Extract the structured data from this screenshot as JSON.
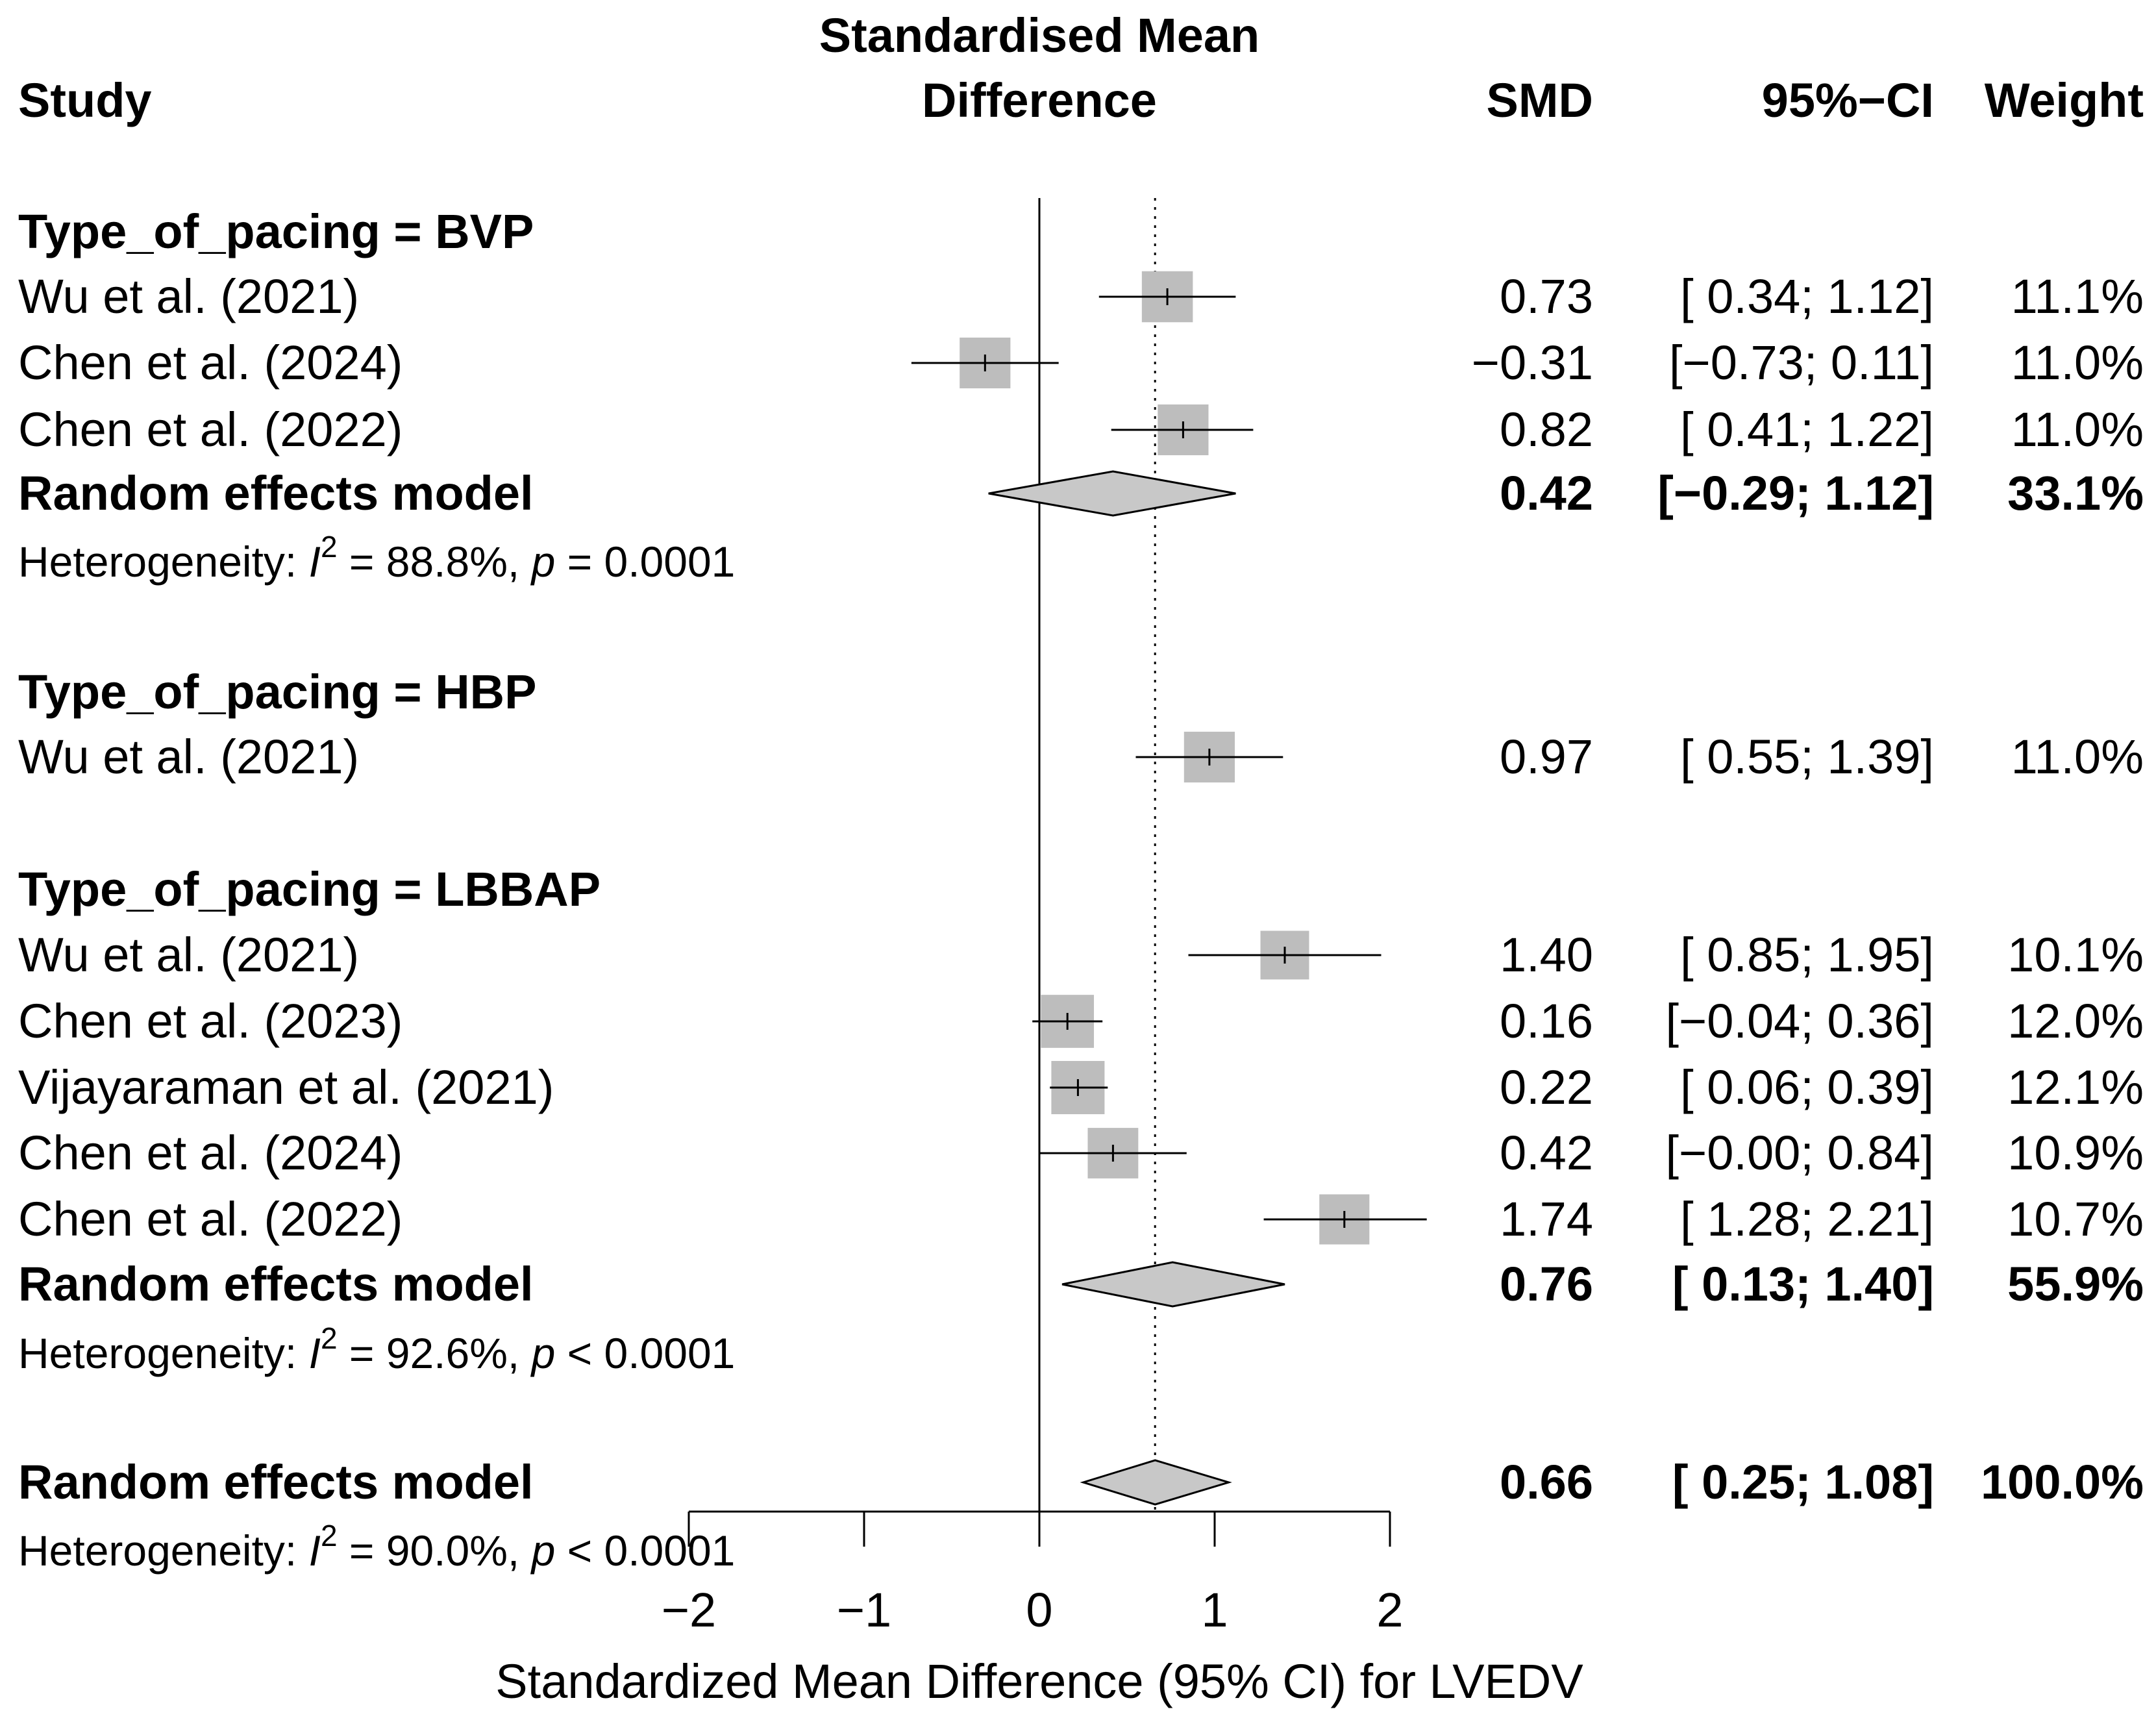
{
  "headers": {
    "study": "Study",
    "smd_line1": "Standardised Mean",
    "smd_line2": "Difference",
    "smd": "SMD",
    "ci": "95%−CI",
    "weight": "Weight"
  },
  "colors": {
    "square": "#bdbdbd",
    "diamond": "#c8c8c8",
    "line": "#000000"
  },
  "chart_data": {
    "type": "forest",
    "xlabel": "Standardized Mean Difference (95% CI) for LVEDV",
    "xlim": [
      -2,
      2
    ],
    "xticks": [
      -2,
      -1,
      0,
      1,
      2
    ],
    "xtick_labels": [
      "−2",
      "−1",
      "0",
      "1",
      "2"
    ],
    "null_line": 0,
    "overall_effect_line": 0.66,
    "groups": [
      {
        "label": "Type_of_pacing = BVP",
        "studies": [
          {
            "study": "Wu et al. (2021)",
            "smd": 0.73,
            "lower": 0.34,
            "upper": 1.12,
            "smd_text": "0.73",
            "ci_text": "[ 0.34; 1.12]",
            "weight_text": "11.1%",
            "weight": 11.1
          },
          {
            "study": "Chen et al. (2024)",
            "smd": -0.31,
            "lower": -0.73,
            "upper": 0.11,
            "smd_text": "−0.31",
            "ci_text": "[−0.73; 0.11]",
            "weight_text": "11.0%",
            "weight": 11.0
          },
          {
            "study": "Chen et al. (2022)",
            "smd": 0.82,
            "lower": 0.41,
            "upper": 1.22,
            "smd_text": "0.82",
            "ci_text": "[ 0.41; 1.22]",
            "weight_text": "11.0%",
            "weight": 11.0
          }
        ],
        "pooled": {
          "label": "Random effects model",
          "smd": 0.42,
          "lower": -0.29,
          "upper": 1.12,
          "smd_text": "0.42",
          "ci_text": "[−0.29; 1.12]",
          "weight_text": "33.1%"
        },
        "heterogeneity": {
          "prefix": "Heterogeneity: ",
          "i2_symbol": "I",
          "i2_sup": "2",
          "i2_text": " = 88.8%, ",
          "p_symbol": "p",
          "p_text": " = 0.0001"
        }
      },
      {
        "label": "Type_of_pacing = HBP",
        "studies": [
          {
            "study": "Wu et al. (2021)",
            "smd": 0.97,
            "lower": 0.55,
            "upper": 1.39,
            "smd_text": "0.97",
            "ci_text": "[ 0.55; 1.39]",
            "weight_text": "11.0%",
            "weight": 11.0
          }
        ]
      },
      {
        "label": "Type_of_pacing = LBBAP",
        "studies": [
          {
            "study": "Wu et al. (2021)",
            "smd": 1.4,
            "lower": 0.85,
            "upper": 1.95,
            "smd_text": "1.40",
            "ci_text": "[ 0.85; 1.95]",
            "weight_text": "10.1%",
            "weight": 10.1
          },
          {
            "study": "Chen et al. (2023)",
            "smd": 0.16,
            "lower": -0.04,
            "upper": 0.36,
            "smd_text": "0.16",
            "ci_text": "[−0.04; 0.36]",
            "weight_text": "12.0%",
            "weight": 12.0
          },
          {
            "study": "Vijayaraman et al. (2021)",
            "smd": 0.22,
            "lower": 0.06,
            "upper": 0.39,
            "smd_text": "0.22",
            "ci_text": "[ 0.06; 0.39]",
            "weight_text": "12.1%",
            "weight": 12.1
          },
          {
            "study": "Chen et al. (2024)",
            "smd": 0.42,
            "lower": -0.0,
            "upper": 0.84,
            "smd_text": "0.42",
            "ci_text": "[−0.00; 0.84]",
            "weight_text": "10.9%",
            "weight": 10.9
          },
          {
            "study": "Chen et al. (2022)",
            "smd": 1.74,
            "lower": 1.28,
            "upper": 2.21,
            "smd_text": "1.74",
            "ci_text": "[ 1.28; 2.21]",
            "weight_text": "10.7%",
            "weight": 10.7
          }
        ],
        "pooled": {
          "label": "Random effects model",
          "smd": 0.76,
          "lower": 0.13,
          "upper": 1.4,
          "smd_text": "0.76",
          "ci_text": "[ 0.13; 1.40]",
          "weight_text": "55.9%"
        },
        "heterogeneity": {
          "prefix": "Heterogeneity: ",
          "i2_symbol": "I",
          "i2_sup": "2",
          "i2_text": " = 92.6%, ",
          "p_symbol": "p",
          "p_text": " < 0.0001"
        }
      }
    ],
    "overall": {
      "label": "Random effects model",
      "smd": 0.66,
      "lower": 0.25,
      "upper": 1.08,
      "smd_text": "0.66",
      "ci_text": "[ 0.25; 1.08]",
      "weight_text": "100.0%",
      "heterogeneity": {
        "prefix": "Heterogeneity: ",
        "i2_symbol": "I",
        "i2_sup": "2",
        "i2_text": " = 90.0%, ",
        "p_symbol": "p",
        "p_text": " < 0.0001"
      }
    }
  }
}
